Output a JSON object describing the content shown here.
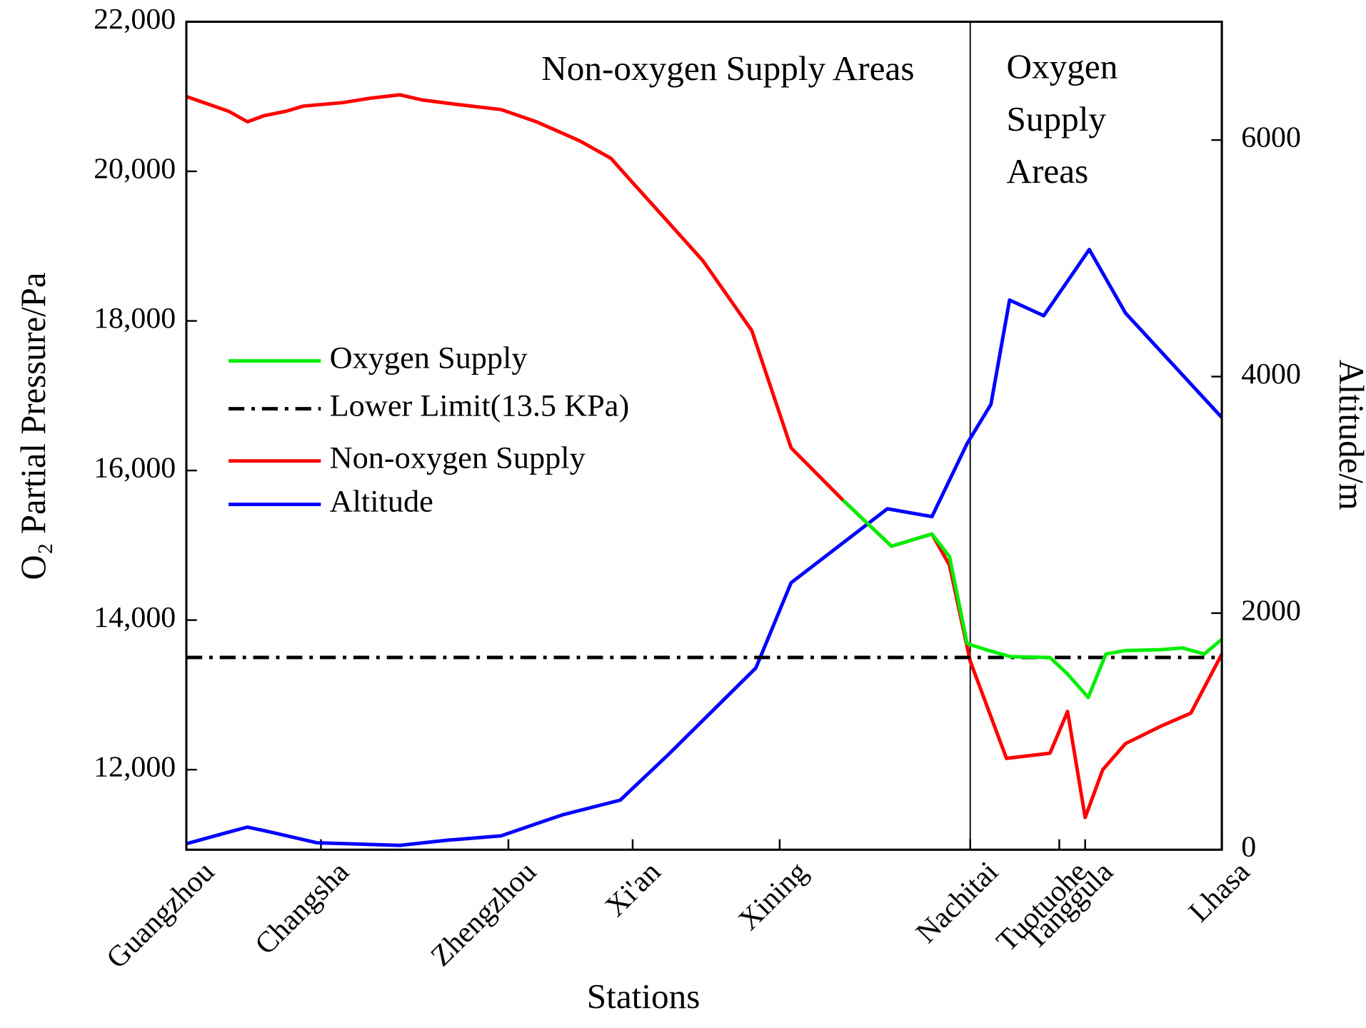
{
  "chart_data": {
    "type": "line",
    "xlabel": "Stations",
    "ylabel": "O₂ Partial Pressure/Pa",
    "y2label": "Altitude/m",
    "xlim": [
      0,
      100
    ],
    "xticks": [
      {
        "value": 0,
        "label": "Guangzhou"
      },
      {
        "value": 13.0,
        "label": "Changsha"
      },
      {
        "value": 31.1,
        "label": "Zhengzhou"
      },
      {
        "value": 43.1,
        "label": "Xi'an"
      },
      {
        "value": 57.3,
        "label": "Xining"
      },
      {
        "value": 75.7,
        "label": "Nachitai"
      },
      {
        "value": 84.3,
        "label": "Tuotuohe"
      },
      {
        "value": 86.8,
        "label": "Tanggula"
      },
      {
        "value": 100,
        "label": "Lhasa"
      }
    ],
    "ylim": [
      10930,
      22000
    ],
    "yticks": [
      {
        "value": 12000,
        "label": "12,000"
      },
      {
        "value": 14000,
        "label": "14,000"
      },
      {
        "value": 16000,
        "label": "16,000"
      },
      {
        "value": 18000,
        "label": "18,000"
      },
      {
        "value": 20000,
        "label": "20,000"
      },
      {
        "value": 22000,
        "label": "22,000"
      }
    ],
    "y2lim": [
      0,
      7000
    ],
    "y2ticks": [
      0,
      2000,
      4000,
      6000
    ],
    "legend": "center left",
    "divider_x": 75.7,
    "annotations": [
      {
        "text": [
          "Non-oxygen Supply Areas"
        ],
        "x": 52.3,
        "y": 21330
      },
      {
        "text": [
          "Oxygen",
          "Supply",
          "Areas"
        ],
        "x": 79.2,
        "y": 21350
      }
    ],
    "series": [
      {
        "name": "Oxygen Supply",
        "color": "#00ee00",
        "style": "solid",
        "x": [
          63.4,
          68.1,
          72.0,
          73.7,
          75.4,
          77.5,
          79.6,
          83.4,
          85.1,
          87.1,
          88.8,
          90.7,
          94.1,
          96.2,
          98.3,
          100
        ],
        "values": [
          15605,
          14988,
          15151,
          14849,
          13686,
          13593,
          13512,
          13500,
          13279,
          12965,
          13546,
          13593,
          13605,
          13628,
          13546,
          13744
        ]
      },
      {
        "name": "Lower Limit(13.5 KPa)",
        "color": "#000000",
        "style": "dashdot",
        "type": "hline",
        "values": [
          13500
        ]
      },
      {
        "name": "Non-oxygen Supply",
        "color": "#ff0000",
        "style": "solid",
        "x": [
          0,
          4.1,
          5.9,
          7.5,
          9.6,
          11.3,
          15.1,
          17.7,
          20.6,
          22.8,
          26.1,
          30.4,
          33.8,
          38.0,
          41.0,
          43.1,
          46.5,
          49.9,
          54.6,
          58.4,
          63.4,
          68.1,
          72.0,
          73.7,
          75.7,
          79.2,
          83.4,
          85.1,
          86.8,
          88.5,
          90.7,
          94.1,
          97.0,
          100
        ],
        "values": [
          21000,
          20802,
          20663,
          20744,
          20802,
          20872,
          20919,
          20977,
          21023,
          20953,
          20895,
          20826,
          20663,
          20407,
          20174,
          19849,
          19326,
          18802,
          17872,
          16302,
          15605,
          14988,
          15151,
          14733,
          13453,
          12151,
          12221,
          12779,
          11360,
          12000,
          12349,
          12581,
          12756,
          13546
        ]
      },
      {
        "name": "Altitude",
        "color": "#0000ff",
        "style": "solid",
        "axis": "y2",
        "x": [
          0,
          3.7,
          5.9,
          7.5,
          12.6,
          20.6,
          25.3,
          30.4,
          36.3,
          41.9,
          46.5,
          55.0,
          58.4,
          67.7,
          72.0,
          75.4,
          77.7,
          79.5,
          82.8,
          87.2,
          90.7,
          100
        ],
        "values": [
          51,
          140,
          191,
          162,
          59,
          37,
          81,
          118,
          294,
          419,
          801,
          1537,
          2257,
          2882,
          2816,
          3434,
          3765,
          4647,
          4515,
          5074,
          4537,
          3654
        ]
      }
    ]
  }
}
